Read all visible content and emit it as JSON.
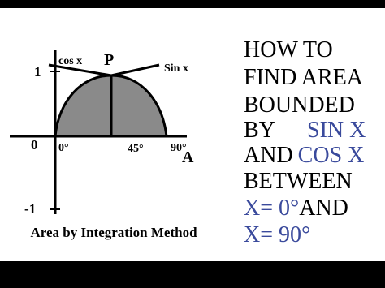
{
  "graph": {
    "y_labels": [
      "1",
      "0",
      "-1"
    ],
    "x_labels": [
      "0°",
      "45°",
      "90°"
    ],
    "point_labels": [
      "P",
      "A"
    ],
    "curve_labels": [
      "cos x",
      "Sin x"
    ]
  },
  "caption": "Area by Integration Method",
  "heading": [
    "HOW TO",
    "FIND AREA",
    "BOUNDED",
    "BY",
    "SIN X",
    "AND",
    "COS X",
    "BETWEEN",
    "X= 0°",
    "AND",
    "X= 90°"
  ]
}
